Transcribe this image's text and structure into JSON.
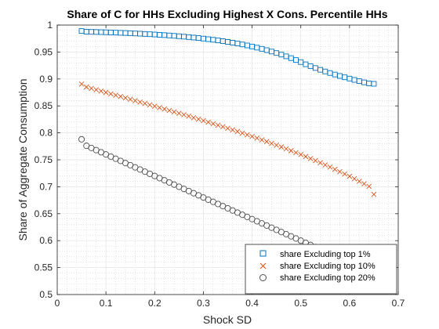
{
  "chart_data": {
    "type": "scatter",
    "title": "Share of C for HHs Excluding Highest X Cons. Percentile HHs",
    "xlabel": "Shock SD",
    "ylabel": "Share of Aggregate Consumption",
    "xlim": [
      0,
      0.7
    ],
    "ylim": [
      0.5,
      1
    ],
    "xticks": [
      0,
      0.1,
      0.2,
      0.3,
      0.4,
      0.5,
      0.6,
      0.7
    ],
    "yticks": [
      0.5,
      0.55,
      0.6,
      0.65,
      0.7,
      0.75,
      0.8,
      0.85,
      0.9,
      0.95,
      1
    ],
    "xtick_labels": [
      "0",
      "0.1",
      "0.2",
      "0.3",
      "0.4",
      "0.5",
      "0.6",
      "0.7"
    ],
    "ytick_labels": [
      "0.5",
      "0.55",
      "0.6",
      "0.65",
      "0.7",
      "0.75",
      "0.8",
      "0.85",
      "0.9",
      "0.95",
      "1"
    ],
    "grid": true,
    "minor_grid": true,
    "legend_position": "bottom-right",
    "series": [
      {
        "name": "share Excluding top 1%",
        "marker": "square",
        "color": "#0072BD",
        "points": [
          [
            0.05,
            0.9889
          ],
          [
            0.06,
            0.9876
          ],
          [
            0.07,
            0.9874
          ],
          [
            0.08,
            0.9872
          ],
          [
            0.09,
            0.9869
          ],
          [
            0.1,
            0.9866
          ],
          [
            0.11,
            0.9863
          ],
          [
            0.12,
            0.986
          ],
          [
            0.13,
            0.9856
          ],
          [
            0.14,
            0.9853
          ],
          [
            0.15,
            0.9849
          ],
          [
            0.16,
            0.9844
          ],
          [
            0.17,
            0.984
          ],
          [
            0.18,
            0.9835
          ],
          [
            0.19,
            0.983
          ],
          [
            0.2,
            0.9825
          ],
          [
            0.21,
            0.9819
          ],
          [
            0.22,
            0.9813
          ],
          [
            0.23,
            0.9807
          ],
          [
            0.24,
            0.98
          ],
          [
            0.25,
            0.9793
          ],
          [
            0.26,
            0.9785
          ],
          [
            0.27,
            0.9777
          ],
          [
            0.28,
            0.9768
          ],
          [
            0.29,
            0.9759
          ],
          [
            0.3,
            0.9749
          ],
          [
            0.31,
            0.9738
          ],
          [
            0.32,
            0.9727
          ],
          [
            0.33,
            0.9715
          ],
          [
            0.34,
            0.9702
          ],
          [
            0.35,
            0.9688
          ],
          [
            0.36,
            0.9673
          ],
          [
            0.37,
            0.9657
          ],
          [
            0.38,
            0.964
          ],
          [
            0.39,
            0.9622
          ],
          [
            0.4,
            0.9602
          ],
          [
            0.41,
            0.9581
          ],
          [
            0.42,
            0.9559
          ],
          [
            0.43,
            0.9535
          ],
          [
            0.44,
            0.9509
          ],
          [
            0.45,
            0.9481
          ],
          [
            0.46,
            0.9452
          ],
          [
            0.47,
            0.942
          ],
          [
            0.48,
            0.9387
          ],
          [
            0.49,
            0.9351
          ],
          [
            0.5,
            0.9313
          ],
          [
            0.51,
            0.9272
          ],
          [
            0.52,
            0.9238
          ],
          [
            0.53,
            0.9203
          ],
          [
            0.54,
            0.917
          ],
          [
            0.55,
            0.9139
          ],
          [
            0.56,
            0.911
          ],
          [
            0.57,
            0.9082
          ],
          [
            0.58,
            0.9056
          ],
          [
            0.59,
            0.9031
          ],
          [
            0.6,
            0.9007
          ],
          [
            0.61,
            0.8983
          ],
          [
            0.62,
            0.896
          ],
          [
            0.63,
            0.8937
          ],
          [
            0.64,
            0.8918
          ],
          [
            0.65,
            0.891
          ]
        ]
      },
      {
        "name": "share Excluding top 10%",
        "marker": "x",
        "color": "#D95319",
        "points": [
          [
            0.05,
            0.8905
          ],
          [
            0.06,
            0.885
          ],
          [
            0.07,
            0.8825
          ],
          [
            0.08,
            0.88
          ],
          [
            0.09,
            0.8775
          ],
          [
            0.1,
            0.875
          ],
          [
            0.11,
            0.8724
          ],
          [
            0.12,
            0.8699
          ],
          [
            0.13,
            0.8674
          ],
          [
            0.14,
            0.8648
          ],
          [
            0.15,
            0.8623
          ],
          [
            0.16,
            0.8597
          ],
          [
            0.17,
            0.8571
          ],
          [
            0.18,
            0.8546
          ],
          [
            0.19,
            0.852
          ],
          [
            0.2,
            0.8494
          ],
          [
            0.21,
            0.8468
          ],
          [
            0.22,
            0.8442
          ],
          [
            0.23,
            0.8415
          ],
          [
            0.24,
            0.8389
          ],
          [
            0.25,
            0.8362
          ],
          [
            0.26,
            0.8336
          ],
          [
            0.27,
            0.8309
          ],
          [
            0.28,
            0.8281
          ],
          [
            0.29,
            0.8254
          ],
          [
            0.3,
            0.8226
          ],
          [
            0.31,
            0.8198
          ],
          [
            0.32,
            0.817
          ],
          [
            0.33,
            0.8142
          ],
          [
            0.34,
            0.8113
          ],
          [
            0.35,
            0.8084
          ],
          [
            0.36,
            0.8055
          ],
          [
            0.37,
            0.8025
          ],
          [
            0.38,
            0.7995
          ],
          [
            0.39,
            0.7964
          ],
          [
            0.4,
            0.7933
          ],
          [
            0.41,
            0.7902
          ],
          [
            0.42,
            0.787
          ],
          [
            0.43,
            0.7838
          ],
          [
            0.44,
            0.7805
          ],
          [
            0.45,
            0.7772
          ],
          [
            0.46,
            0.7738
          ],
          [
            0.47,
            0.7704
          ],
          [
            0.48,
            0.7669
          ],
          [
            0.49,
            0.7633
          ],
          [
            0.5,
            0.7597
          ],
          [
            0.51,
            0.756
          ],
          [
            0.52,
            0.7522
          ],
          [
            0.53,
            0.7484
          ],
          [
            0.54,
            0.7445
          ],
          [
            0.55,
            0.7405
          ],
          [
            0.56,
            0.7364
          ],
          [
            0.57,
            0.7323
          ],
          [
            0.58,
            0.728
          ],
          [
            0.59,
            0.7237
          ],
          [
            0.6,
            0.7193
          ],
          [
            0.61,
            0.7148
          ],
          [
            0.62,
            0.7102
          ],
          [
            0.63,
            0.7055
          ],
          [
            0.64,
            0.7007
          ],
          [
            0.65,
            0.6858
          ]
        ]
      },
      {
        "name": "share Excluding top 20%",
        "marker": "circle",
        "color": "#4D4D4D",
        "points": [
          [
            0.05,
            0.788
          ],
          [
            0.06,
            0.776
          ],
          [
            0.07,
            0.772
          ],
          [
            0.08,
            0.768
          ],
          [
            0.09,
            0.764
          ],
          [
            0.1,
            0.76
          ],
          [
            0.11,
            0.756
          ],
          [
            0.12,
            0.752
          ],
          [
            0.13,
            0.748
          ],
          [
            0.14,
            0.744
          ],
          [
            0.15,
            0.74
          ],
          [
            0.16,
            0.736
          ],
          [
            0.17,
            0.732
          ],
          [
            0.18,
            0.728
          ],
          [
            0.19,
            0.724
          ],
          [
            0.2,
            0.72
          ],
          [
            0.21,
            0.716
          ],
          [
            0.22,
            0.712
          ],
          [
            0.23,
            0.708
          ],
          [
            0.24,
            0.704
          ],
          [
            0.25,
            0.7
          ],
          [
            0.26,
            0.696
          ],
          [
            0.27,
            0.692
          ],
          [
            0.28,
            0.688
          ],
          [
            0.29,
            0.684
          ],
          [
            0.3,
            0.68
          ],
          [
            0.31,
            0.676
          ],
          [
            0.32,
            0.672
          ],
          [
            0.33,
            0.668
          ],
          [
            0.34,
            0.664
          ],
          [
            0.35,
            0.66
          ],
          [
            0.36,
            0.656
          ],
          [
            0.37,
            0.652
          ],
          [
            0.38,
            0.648
          ],
          [
            0.39,
            0.644
          ],
          [
            0.4,
            0.64
          ],
          [
            0.41,
            0.636
          ],
          [
            0.42,
            0.632
          ],
          [
            0.43,
            0.628
          ],
          [
            0.44,
            0.624
          ],
          [
            0.45,
            0.62
          ],
          [
            0.46,
            0.616
          ],
          [
            0.47,
            0.612
          ],
          [
            0.48,
            0.608
          ],
          [
            0.49,
            0.604
          ],
          [
            0.5,
            0.6
          ],
          [
            0.51,
            0.596
          ],
          [
            0.52,
            0.592
          ],
          [
            0.53,
            0.588
          ],
          [
            0.54,
            0.584
          ],
          [
            0.55,
            0.58
          ],
          [
            0.56,
            0.576
          ],
          [
            0.57,
            0.572
          ],
          [
            0.58,
            0.568
          ],
          [
            0.59,
            0.564
          ],
          [
            0.6,
            0.56
          ],
          [
            0.61,
            0.556
          ],
          [
            0.62,
            0.552
          ],
          [
            0.63,
            0.548
          ],
          [
            0.64,
            0.544
          ],
          [
            0.65,
            0.54
          ]
        ]
      }
    ]
  }
}
